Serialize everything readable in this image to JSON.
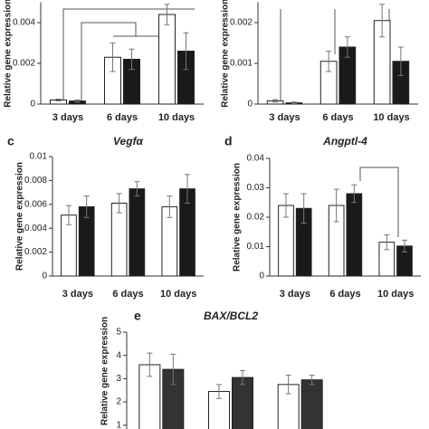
{
  "chart_data": [
    {
      "type": "bar",
      "y_label": "Relative gene expression",
      "categories": [
        "3 days",
        "6 days",
        "10 days"
      ],
      "ylim": [
        0,
        0.005
      ],
      "yticks": [
        0,
        0.002,
        0.004
      ],
      "series": [
        {
          "color": "#ffffff",
          "values": [
            0.0002,
            0.0023,
            0.0044
          ],
          "errors": [
            5e-05,
            0.0007,
            0.0005
          ]
        },
        {
          "color": "#1a1a1a",
          "values": [
            0.00015,
            0.0022,
            0.0026
          ],
          "errors": [
            5e-05,
            0.0005,
            0.0009
          ]
        }
      ]
    },
    {
      "type": "bar",
      "y_label": "Relative gene expression",
      "categories": [
        "3 days",
        "6 days",
        "10 days"
      ],
      "ylim": [
        0,
        0.0025
      ],
      "yticks": [
        0,
        0.001,
        0.002
      ],
      "series": [
        {
          "color": "#ffffff",
          "values": [
            8e-05,
            0.00105,
            0.00205
          ],
          "errors": [
            3e-05,
            0.00025,
            0.0004
          ]
        },
        {
          "color": "#1a1a1a",
          "values": [
            3e-05,
            0.0014,
            0.00105
          ],
          "errors": [
            2e-05,
            0.00025,
            0.00035
          ]
        }
      ]
    },
    {
      "type": "bar",
      "panel": "c",
      "title": "Vegfα",
      "y_label": "Relative gene expression",
      "categories": [
        "3 days",
        "6 days",
        "10 days"
      ],
      "ylim": [
        0,
        0.01
      ],
      "yticks": [
        0,
        0.002,
        0.004,
        0.006,
        0.008,
        0.01
      ],
      "series": [
        {
          "color": "#ffffff",
          "values": [
            0.0051,
            0.0061,
            0.0058
          ],
          "errors": [
            0.0008,
            0.0008,
            0.0009
          ]
        },
        {
          "color": "#1a1a1a",
          "values": [
            0.0058,
            0.0073,
            0.0073
          ],
          "errors": [
            0.0009,
            0.0006,
            0.0012
          ]
        }
      ]
    },
    {
      "type": "bar",
      "panel": "d",
      "title": "Angptl-4",
      "y_label": "Relative gene expression",
      "categories": [
        "3 days",
        "6 days",
        "10 days"
      ],
      "ylim": [
        0,
        0.04
      ],
      "yticks": [
        0,
        0.01,
        0.02,
        0.03,
        0.04
      ],
      "series": [
        {
          "color": "#ffffff",
          "values": [
            0.024,
            0.024,
            0.0115
          ],
          "errors": [
            0.004,
            0.0055,
            0.0025
          ]
        },
        {
          "color": "#1a1a1a",
          "values": [
            0.023,
            0.028,
            0.0102
          ],
          "errors": [
            0.005,
            0.003,
            0.002
          ]
        }
      ]
    },
    {
      "type": "bar",
      "panel": "e",
      "title": "BAX/BCL2",
      "y_label": "Relative gene expression",
      "ylim": [
        0,
        5
      ],
      "yticks": [
        1,
        2,
        3,
        4,
        5
      ],
      "series": [
        {
          "color": "#ffffff",
          "values": [
            3.6,
            2.45,
            2.75
          ],
          "errors": [
            0.5,
            0.3,
            0.4
          ]
        },
        {
          "color": "#333333",
          "values": [
            3.4,
            3.05,
            2.95
          ],
          "errors": [
            0.65,
            0.3,
            0.2
          ]
        }
      ]
    }
  ]
}
